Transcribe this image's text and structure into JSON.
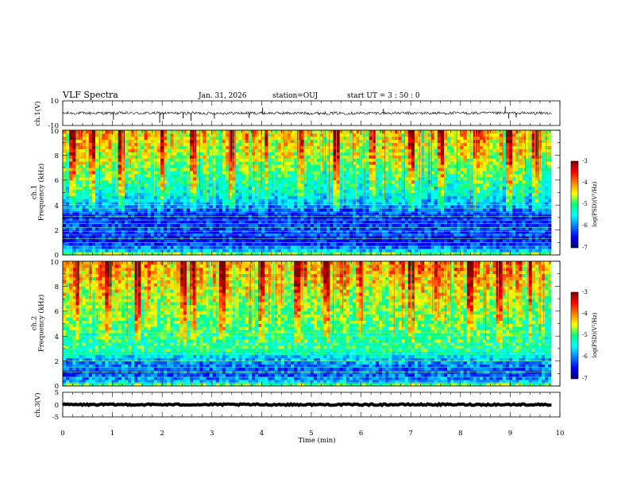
{
  "header": {
    "title": "VLF Spectra",
    "date": "Jan. 31, 2026",
    "station": "station=OUJ",
    "start_ut": "start  UT =   3  : 50 : 0"
  },
  "chart_data": [
    {
      "type": "line",
      "id": "ch1-waveform",
      "ylabel": "ch.1(V)",
      "ylim": [
        -10,
        10
      ],
      "yticks": [
        "10",
        "-10"
      ],
      "xlim": [
        0,
        10
      ],
      "baseline": 0,
      "noise_band": 1.2,
      "spikes": [
        {
          "t": 1.02,
          "v": -1.8
        },
        {
          "t": 1.95,
          "v": -2.6
        },
        {
          "t": 2.02,
          "v": -1.6
        },
        {
          "t": 2.42,
          "v": -1.4
        },
        {
          "t": 2.58,
          "v": -2.1
        },
        {
          "t": 3.05,
          "v": -1.5
        },
        {
          "t": 3.75,
          "v": -1.3
        },
        {
          "t": 4.02,
          "v": 1.5
        },
        {
          "t": 6.45,
          "v": 1.2
        },
        {
          "t": 8.9,
          "v": 1.8
        },
        {
          "t": 8.97,
          "v": -1.4
        },
        {
          "t": 9.12,
          "v": -1.2
        }
      ]
    },
    {
      "type": "heatmap",
      "id": "ch1-spectrogram",
      "ylabel": "ch.1\nFrequency (kHz)",
      "ylim": [
        0,
        10
      ],
      "yticks": [
        "0",
        "2",
        "4",
        "6",
        "8",
        "10"
      ],
      "xlim": [
        0,
        9.83
      ],
      "colorbar": {
        "label": "log(PSD)(V²/Hz)",
        "range": [
          -7,
          -3
        ],
        "ticks": [
          "-3",
          "-4",
          "-5",
          "-6",
          "-7"
        ]
      },
      "level_profile": [
        {
          "f": 0.0,
          "level": -4.3
        },
        {
          "f": 0.3,
          "level": -5.6
        },
        {
          "f": 1.0,
          "level": -6.5
        },
        {
          "f": 2.0,
          "level": -6.2
        },
        {
          "f": 3.0,
          "level": -6.4
        },
        {
          "f": 3.6,
          "level": -6.1
        },
        {
          "f": 4.2,
          "level": -5.7
        },
        {
          "f": 5.0,
          "level": -5.4
        },
        {
          "f": 7.0,
          "level": -4.9
        },
        {
          "f": 8.5,
          "level": -4.5
        },
        {
          "f": 10.0,
          "level": -4.3
        }
      ],
      "tone_lines_khz": [
        0.2,
        0.45,
        0.7,
        1.0,
        1.3,
        1.6,
        1.9,
        2.2,
        2.5,
        2.8,
        3.1,
        3.4,
        3.75,
        4.05
      ],
      "burst_times_min": [
        0.2,
        0.6,
        1.2,
        2.0,
        2.6,
        3.4,
        4.1,
        4.8,
        5.5,
        6.2,
        7.0,
        7.6,
        8.3,
        9.0,
        9.5
      ]
    },
    {
      "type": "heatmap",
      "id": "ch2-spectrogram",
      "ylabel": "ch.2\nFrequency (kHz)",
      "ylim": [
        0,
        10
      ],
      "yticks": [
        "0",
        "2",
        "4",
        "6",
        "8",
        "10"
      ],
      "xlim": [
        0,
        9.83
      ],
      "colorbar": {
        "label": "log(PSD)(V²/Hz)",
        "range": [
          -7,
          -3
        ],
        "ticks": [
          "-3",
          "-4",
          "-5",
          "-6",
          "-7"
        ]
      },
      "level_profile": [
        {
          "f": 0.0,
          "level": -4.5
        },
        {
          "f": 0.4,
          "level": -5.8
        },
        {
          "f": 1.0,
          "level": -6.2
        },
        {
          "f": 2.0,
          "level": -5.9
        },
        {
          "f": 3.0,
          "level": -5.0
        },
        {
          "f": 4.0,
          "level": -5.1
        },
        {
          "f": 5.0,
          "level": -4.9
        },
        {
          "f": 7.0,
          "level": -4.6
        },
        {
          "f": 8.5,
          "level": -4.3
        },
        {
          "f": 10.0,
          "level": -4.0
        }
      ],
      "tone_lines_khz": [
        0.3,
        0.7,
        1.1,
        1.5,
        2.0,
        2.6,
        3.0,
        3.4,
        4.0,
        4.3
      ],
      "burst_times_min": [
        0.3,
        0.9,
        1.5,
        2.4,
        2.6,
        3.2,
        4.0,
        4.7,
        5.3,
        6.0,
        7.0,
        7.5,
        8.2,
        8.8,
        9.4
      ]
    },
    {
      "type": "line",
      "id": "ch3-waveform",
      "ylabel": "ch.3(V)",
      "ylim": [
        -5,
        5
      ],
      "yticks": [
        "5",
        "0",
        "-5"
      ],
      "xlim": [
        0,
        10
      ],
      "baseline": 0,
      "noise_band": 0.3
    }
  ],
  "xaxis": {
    "label": "Time (min)",
    "range": [
      0,
      10
    ],
    "ticks": [
      "0",
      "1",
      "2",
      "3",
      "4",
      "5",
      "6",
      "7",
      "8",
      "9",
      "10"
    ]
  },
  "colormap": [
    "#000080",
    "#0000ff",
    "#0080ff",
    "#00ffff",
    "#00ff80",
    "#ffff00",
    "#ff8000",
    "#ff0000",
    "#800000"
  ]
}
